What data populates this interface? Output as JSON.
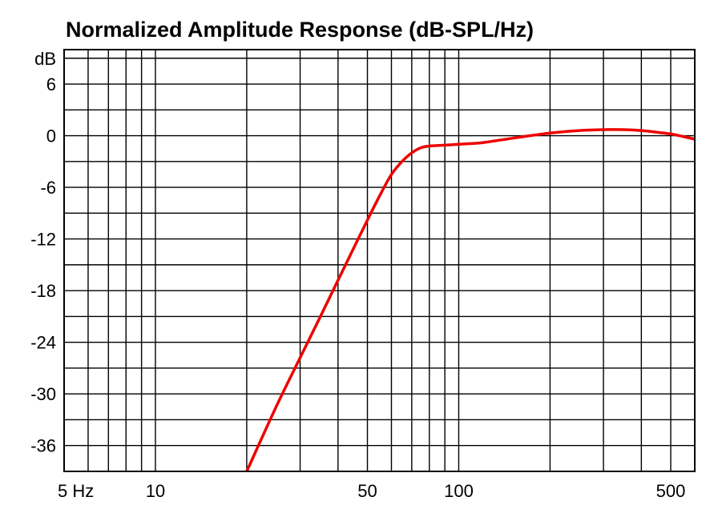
{
  "chart_data": {
    "type": "line",
    "title": "Normalized Amplitude Response (dB-SPL/Hz)",
    "xscale": "log",
    "xlim": [
      5,
      600
    ],
    "ylim": [
      -39,
      10
    ],
    "y_unit_label": "dB",
    "y_ticks": [
      6,
      0,
      -6,
      -12,
      -18,
      -24,
      -30,
      -36
    ],
    "x_ticks": [
      {
        "value": 5,
        "label": "5 Hz"
      },
      {
        "value": 10,
        "label": "10"
      },
      {
        "value": 50,
        "label": "50"
      },
      {
        "value": 100,
        "label": "100"
      },
      {
        "value": 500,
        "label": "500"
      }
    ],
    "x_gridlines": [
      5,
      6,
      7,
      8,
      9,
      10,
      20,
      30,
      40,
      50,
      60,
      70,
      80,
      90,
      100,
      200,
      300,
      400,
      500,
      600
    ],
    "grid": true,
    "series": [
      {
        "color": "#ee0000",
        "x": [
          20,
          25,
          30,
          35,
          40,
          45,
          50,
          55,
          60,
          65,
          70,
          75,
          80,
          90,
          100,
          120,
          150,
          200,
          250,
          300,
          350,
          400,
          450,
          500,
          550,
          600
        ],
        "y": [
          -39,
          -31.5,
          -25.8,
          -21,
          -16.8,
          -13.1,
          -9.8,
          -6.9,
          -4.5,
          -3,
          -2,
          -1.4,
          -1.2,
          -1.1,
          -1,
          -0.8,
          -0.3,
          0.3,
          0.6,
          0.7,
          0.7,
          0.6,
          0.4,
          0.2,
          -0.1,
          -0.4
        ]
      }
    ]
  }
}
